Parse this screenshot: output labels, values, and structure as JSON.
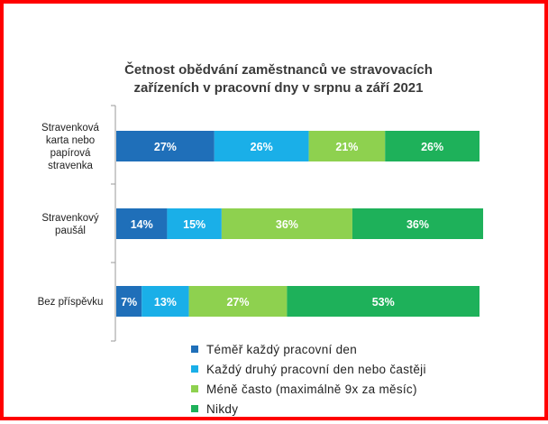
{
  "chart_data": {
    "type": "bar",
    "orientation": "horizontal",
    "stacked": true,
    "title": "Četnost obědvání zaměstnanců ve stravovacích zařízeních v pracovní dny v srpnu a září 2021",
    "title_lines": [
      "Četnost obědvání zaměstnanců ve stravovacích",
      "zařízeních v pracovní dny v srpnu a září 2021"
    ],
    "categories": [
      "Stravenková karta nebo papírová stravenka",
      "Stravenkový paušál",
      "Bez příspěvku"
    ],
    "category_lines": [
      [
        "Stravenková",
        "karta nebo",
        "papírová",
        "stravenka"
      ],
      [
        "Stravenkový",
        "paušál"
      ],
      [
        "Bez příspěvku"
      ]
    ],
    "series": [
      {
        "name": "Téměř každý pracovní den",
        "values": [
          27,
          14,
          7
        ],
        "labels": [
          "27%",
          "14%",
          "7%"
        ]
      },
      {
        "name": "Každý druhý pracovní den nebo častěji",
        "values": [
          26,
          15,
          13
        ],
        "labels": [
          "26%",
          "15%",
          "13%"
        ]
      },
      {
        "name": "Méně často (maximálně 9x za měsíc)",
        "values": [
          21,
          36,
          27
        ],
        "labels": [
          "21%",
          "36%",
          "27%"
        ]
      },
      {
        "name": "Nikdy",
        "values": [
          26,
          36,
          53
        ],
        "labels": [
          "26%",
          "36%",
          "53%"
        ]
      }
    ],
    "colors": [
      "#1f6fb9",
      "#1aafe8",
      "#8ed14f",
      "#1eb15a"
    ],
    "xlim": [
      0,
      100
    ],
    "grid": false,
    "legend_position": "bottom"
  }
}
